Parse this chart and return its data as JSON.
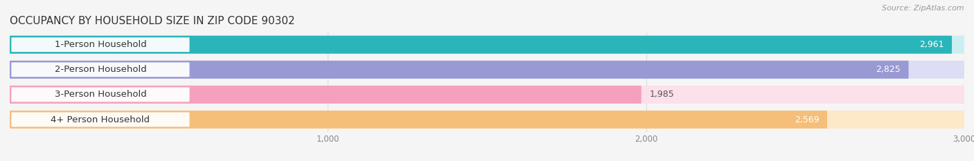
{
  "title": "OCCUPANCY BY HOUSEHOLD SIZE IN ZIP CODE 90302",
  "source": "Source: ZipAtlas.com",
  "categories": [
    "1-Person Household",
    "2-Person Household",
    "3-Person Household",
    "4+ Person Household"
  ],
  "values": [
    2961,
    2825,
    1985,
    2569
  ],
  "bar_colors": [
    "#29b5ba",
    "#9999d4",
    "#f5a0bc",
    "#f5bf7a"
  ],
  "bar_bg_colors": [
    "#cceef0",
    "#ddddf5",
    "#fce0ea",
    "#fde8c8"
  ],
  "value_labels": [
    "2,961",
    "2,825",
    "1,985",
    "2,569"
  ],
  "value_colors": [
    "white",
    "white",
    "#555555",
    "#555555"
  ],
  "xlim": [
    0,
    3000
  ],
  "xticks": [
    1000,
    2000,
    3000
  ],
  "xtick_labels": [
    "1,000",
    "2,000",
    "3,000"
  ],
  "title_fontsize": 11,
  "label_fontsize": 9.5,
  "value_fontsize": 9,
  "background_color": "#f5f5f5",
  "grid_color": "#dddddd"
}
